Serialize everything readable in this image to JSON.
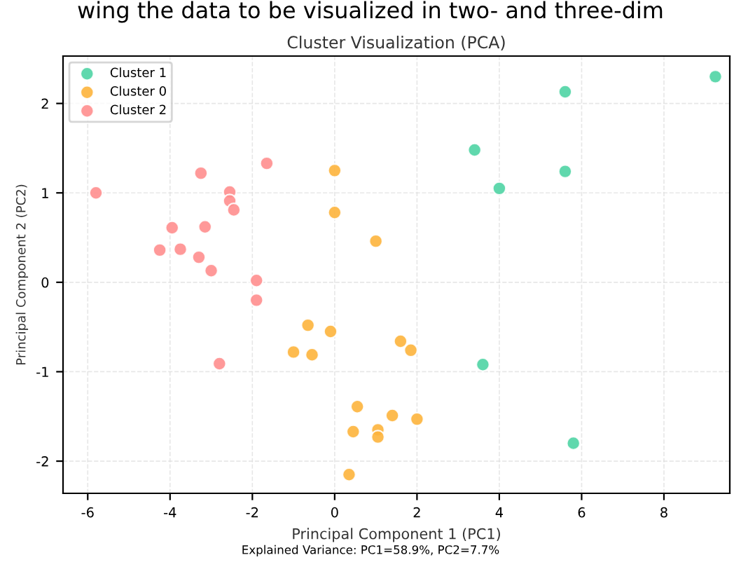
{
  "chart_data": {
    "type": "scatter",
    "title": "Cluster Visualization (PCA)",
    "xlabel": "Principal Component 1 (PC1)",
    "ylabel": "Principal Component 2 (PC2)",
    "annotations": [
      "wing the data to be visualized in two- and three-dim",
      "Explained Variance: PC1=58.9%, PC2=7.7%"
    ],
    "xlim": [
      -6.6,
      9.6
    ],
    "ylim": [
      -2.36,
      2.53
    ],
    "xticks": [
      -6,
      -4,
      -2,
      0,
      2,
      4,
      6,
      8
    ],
    "yticks": [
      -2,
      -1,
      0,
      1,
      2
    ],
    "grid": true,
    "legend": "top left",
    "marker": "circle",
    "series": [
      {
        "name": "Cluster 1",
        "color": "#4fd4a4",
        "x": [
          9.25,
          5.6,
          3.4,
          5.6,
          4.0,
          3.6,
          5.8
        ],
        "values": [
          2.3,
          2.13,
          1.48,
          1.24,
          1.05,
          -0.92,
          -1.8
        ]
      },
      {
        "name": "Cluster 0",
        "color": "#fdb43c",
        "x": [
          0,
          0,
          1.0,
          -0.65,
          -0.1,
          1.6,
          1.85,
          -1.0,
          -0.55,
          0.55,
          1.4,
          2.0,
          0.45,
          1.05,
          1.05,
          0.35
        ],
        "values": [
          1.25,
          0.78,
          0.46,
          -0.48,
          -0.55,
          -0.66,
          -0.76,
          -0.78,
          -0.81,
          -1.39,
          -1.49,
          -1.53,
          -1.67,
          -1.65,
          -1.73,
          -2.15
        ]
      },
      {
        "name": "Cluster 2",
        "color": "#ff8e8e",
        "x": [
          -5.8,
          -3.25,
          -1.65,
          -2.55,
          -2.55,
          -2.45,
          -3.95,
          -3.15,
          -4.25,
          -3.75,
          -3.3,
          -3.0,
          -1.9,
          -1.9,
          -2.8
        ],
        "values": [
          1.0,
          1.22,
          1.33,
          1.01,
          0.91,
          0.81,
          0.61,
          0.62,
          0.36,
          0.37,
          0.28,
          0.13,
          0.02,
          -0.2,
          -0.91
        ]
      }
    ]
  }
}
